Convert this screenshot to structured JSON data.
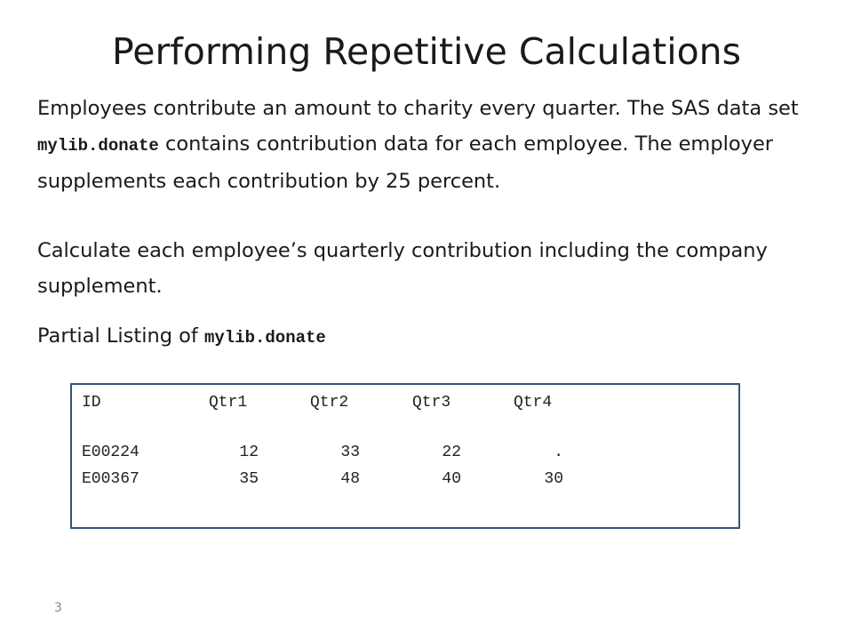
{
  "slide": {
    "title": "Performing Repetitive Calculations",
    "paragraph1": {
      "before": "Employees contribute an amount to charity every quarter. The SAS data set ",
      "code": "mylib.donate",
      "after": " contains contribution data for each employee. The employer supplements each contribution by 25 percent."
    },
    "paragraph2": "Calculate each employee’s quarterly contribution including the company supplement.",
    "listing_caption": {
      "text": "Partial Listing of ",
      "code": "mylib.donate"
    },
    "listing": {
      "headers": [
        "ID",
        "Qtr1",
        "Qtr2",
        "Qtr3",
        "Qtr4"
      ],
      "rows": [
        [
          "E00224",
          "12",
          "33",
          "22",
          "."
        ],
        [
          "E00367",
          "35",
          "48",
          "40",
          "30"
        ]
      ]
    },
    "page_number": "3"
  }
}
